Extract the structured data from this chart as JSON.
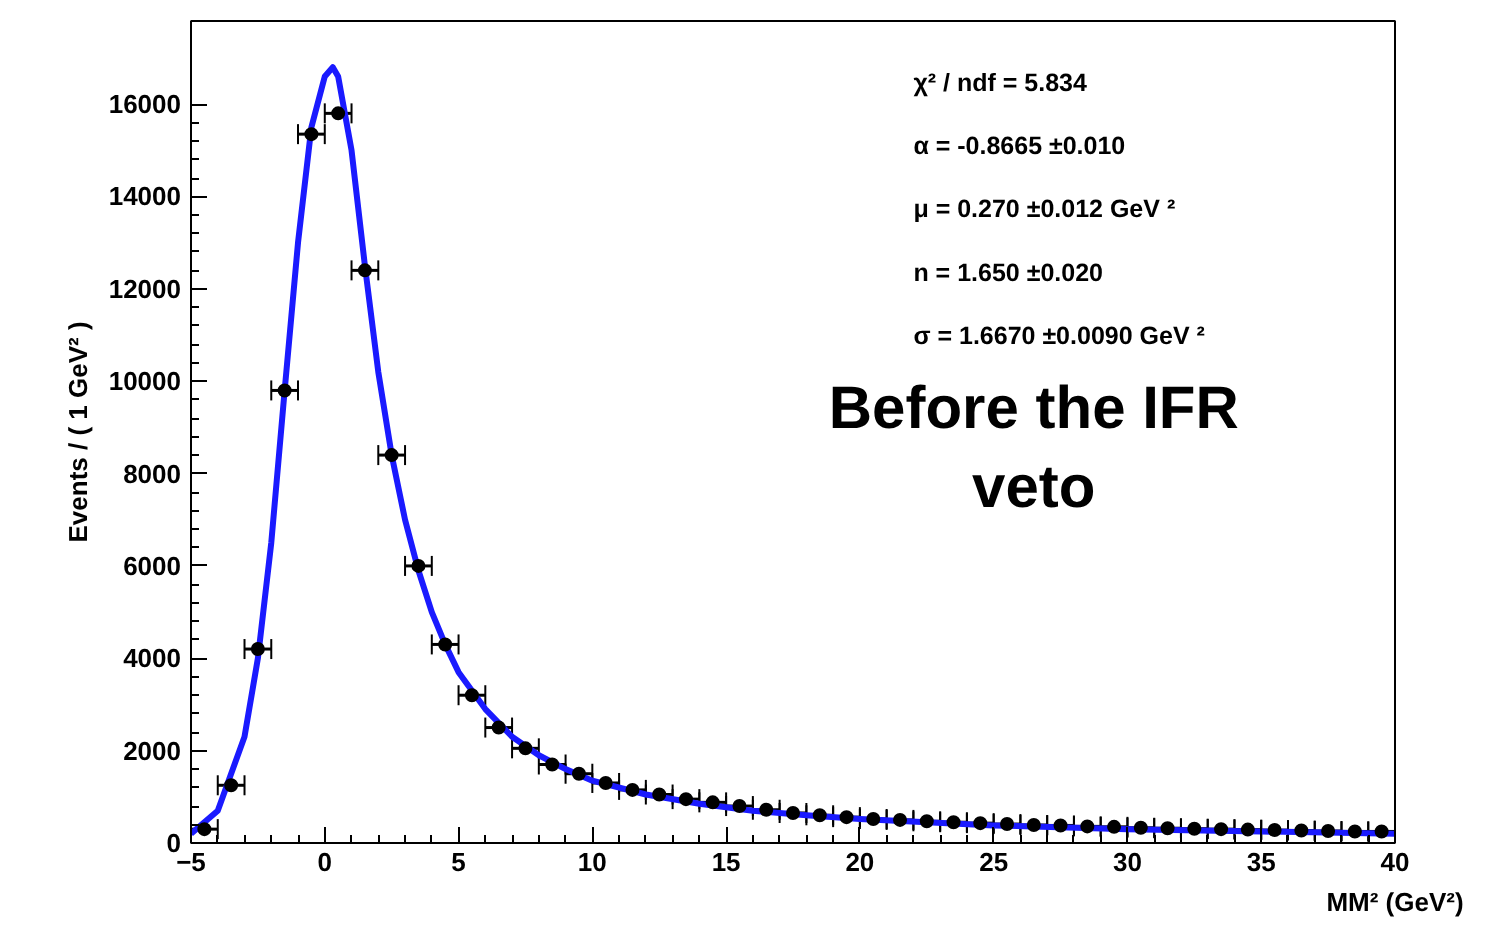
{
  "chart_data": {
    "type": "scatter",
    "xlabel": "MM² (GeV²)",
    "ylabel": "Events / ( 1 GeV² )",
    "xlim": [
      -5,
      40
    ],
    "ylim": [
      0,
      17800
    ],
    "xticks": [
      -5,
      0,
      5,
      10,
      15,
      20,
      25,
      30,
      35,
      40
    ],
    "yticks": [
      0,
      2000,
      4000,
      6000,
      8000,
      10000,
      12000,
      14000,
      16000
    ],
    "grid": false,
    "marker": "circle",
    "annotations": [
      "χ² / ndf = 5.834",
      "α = -0.8665 ±0.010",
      "μ =  0.270 ±0.012 GeV ²",
      "n =  1.650 ±0.020",
      "σ =  1.6670 ±0.0090 GeV ²",
      "Before the IFR\nveto"
    ],
    "series": [
      {
        "color": "#000000",
        "x": [
          -4.5,
          -3.5,
          -2.5,
          -1.5,
          -0.5,
          0.5,
          1.5,
          2.5,
          3.5,
          4.5,
          5.5,
          6.5,
          7.5,
          8.5,
          9.5,
          10.5,
          11.5,
          12.5,
          13.5,
          14.5,
          15.5,
          16.5,
          17.5,
          18.5,
          19.5,
          20.5,
          21.5,
          22.5,
          23.5,
          24.5,
          25.5,
          26.5,
          27.5,
          28.5,
          29.5,
          30.5,
          31.5,
          32.5,
          33.5,
          34.5,
          35.5,
          36.5,
          37.5,
          38.5,
          39.5
        ],
        "values": [
          300,
          1250,
          4200,
          9800,
          15350,
          15800,
          12400,
          8400,
          6000,
          4300,
          3200,
          2500,
          2050,
          1700,
          1500,
          1300,
          1150,
          1050,
          950,
          880,
          800,
          720,
          650,
          600,
          560,
          520,
          500,
          470,
          450,
          430,
          410,
          390,
          380,
          360,
          350,
          330,
          320,
          310,
          300,
          290,
          280,
          270,
          260,
          250,
          250
        ],
        "xerrors": [
          0.5,
          0.5,
          0.5,
          0.5,
          0.5,
          0.5,
          0.5,
          0.5,
          0.5,
          0.5,
          0.5,
          0.5,
          0.5,
          0.5,
          0.5,
          0.5,
          0.5,
          0.5,
          0.5,
          0.5,
          0.5,
          0.5,
          0.5,
          0.5,
          0.5,
          0.5,
          0.5,
          0.5,
          0.5,
          0.5,
          0.5,
          0.5,
          0.5,
          0.5,
          0.5,
          0.5,
          0.5,
          0.5,
          0.5,
          0.5,
          0.5,
          0.5,
          0.5,
          0.5,
          0.5
        ]
      },
      {
        "type": "line",
        "color": "#1a1aff",
        "marker": "none",
        "x": [
          -5,
          -4,
          -3,
          -2.5,
          -2,
          -1.5,
          -1,
          -0.5,
          0,
          0.3,
          0.5,
          1,
          1.5,
          2,
          2.5,
          3,
          3.5,
          4,
          4.5,
          5,
          6,
          7,
          8,
          9,
          10,
          12,
          14,
          16,
          18,
          20,
          25,
          30,
          35,
          40
        ],
        "values": [
          200,
          700,
          2300,
          4000,
          6500,
          9800,
          13000,
          15500,
          16600,
          16800,
          16600,
          15000,
          12500,
          10200,
          8400,
          7000,
          5900,
          5000,
          4300,
          3700,
          2900,
          2300,
          1900,
          1600,
          1350,
          1050,
          850,
          700,
          600,
          520,
          380,
          300,
          250,
          200
        ]
      }
    ]
  }
}
